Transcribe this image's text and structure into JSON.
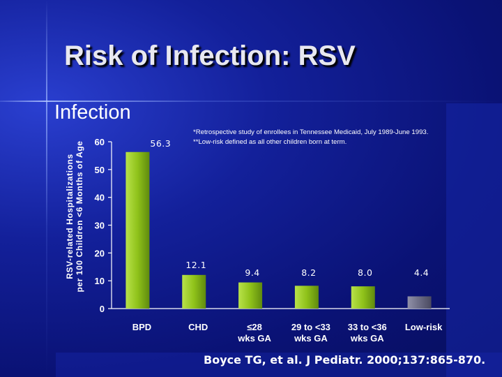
{
  "slide": {
    "title": "Risk of Infection: RSV",
    "subtitle": "Infection",
    "footnotes": [
      "*Retrospective study of enrollees in Tennessee Medicaid, July 1989-June 1993.",
      "**Low-risk defined as all other children born at term."
    ],
    "citation": "Boyce TG, et al. J Pediatr. 2000;137:865-870."
  },
  "chart_data": {
    "type": "bar",
    "title": "",
    "ylabel_lines": [
      "RSV-related Hospitalizations",
      "per 100 Children <6 Months of Age"
    ],
    "xlabel": "",
    "ylim": [
      0,
      60
    ],
    "yticks": [
      0,
      10,
      20,
      30,
      40,
      50,
      60
    ],
    "grid": false,
    "categories": [
      [
        "BPD"
      ],
      [
        "CHD"
      ],
      [
        "≤28",
        "wks GA"
      ],
      [
        "29 to <33",
        "wks GA"
      ],
      [
        "33 to <36",
        "wks GA"
      ],
      [
        "Low-risk"
      ]
    ],
    "values": [
      56.3,
      12.1,
      9.4,
      8.2,
      8.0,
      4.4
    ],
    "value_labels": [
      "56.3",
      "12.1",
      "9.4",
      "8.2",
      "8.0",
      "4.4"
    ],
    "colors": {
      "bar": "#8fc21a",
      "bar_highlight": "#b8e24a",
      "bar_lowrisk": "#6c6c84",
      "axis": "#ffffff",
      "text": "#ffffff"
    }
  }
}
